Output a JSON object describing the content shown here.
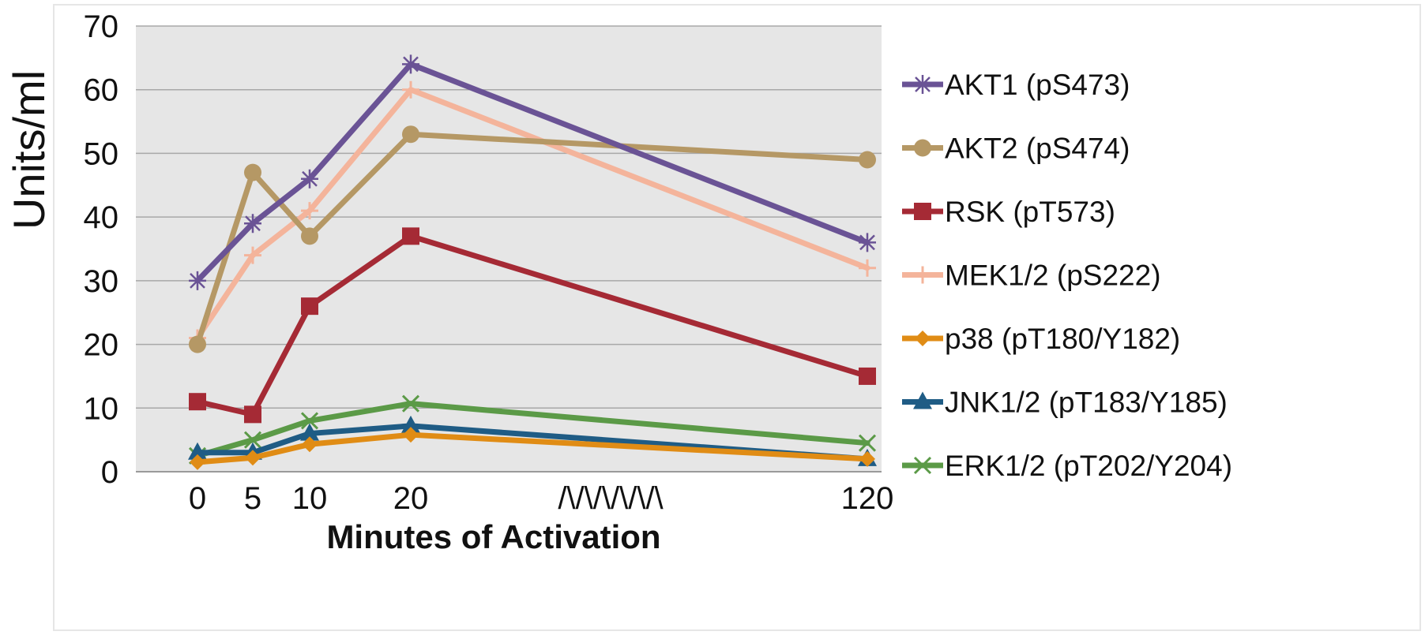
{
  "chart_data": {
    "type": "line",
    "title": "",
    "xlabel": "Minutes of Activation",
    "ylabel": "Units/ml",
    "ylim": [
      0,
      70
    ],
    "y_ticks": [
      "0",
      "10",
      "20",
      "30",
      "40",
      "50",
      "60",
      "70"
    ],
    "x": [
      0,
      5,
      10,
      20,
      120
    ],
    "x_tick_labels": [
      "0",
      "5",
      "10",
      "20",
      "120"
    ],
    "axis_break_label": "/\\/\\/\\/\\/\\/\\",
    "grid": true,
    "legend_position": "right",
    "series": [
      {
        "name": "AKT1 (pS473)",
        "color": "#6a5395",
        "marker": "asterisk",
        "values": [
          30,
          39,
          46,
          64,
          36
        ]
      },
      {
        "name": "AKT2 (pS474)",
        "color": "#b59865",
        "marker": "circle",
        "values": [
          20,
          47,
          37,
          53,
          49
        ]
      },
      {
        "name": "RSK (pT573)",
        "color": "#a52a35",
        "marker": "square",
        "values": [
          11,
          9,
          26,
          37,
          15
        ]
      },
      {
        "name": "MEK1/2 (pS222)",
        "color": "#f4b49b",
        "marker": "plus",
        "values": [
          21,
          34,
          41,
          60,
          32
        ]
      },
      {
        "name": "p38 (pT180/Y182)",
        "color": "#e08c15",
        "marker": "diamond",
        "values": [
          1.5,
          2.2,
          4.3,
          5.8,
          2
        ]
      },
      {
        "name": "JNK1/2 (pT183/Y185)",
        "color": "#1f5c85",
        "marker": "triangle",
        "values": [
          3,
          3,
          6,
          7.2,
          2
        ]
      },
      {
        "name": "ERK1/2 (pT202/Y204)",
        "color": "#5b9a47",
        "marker": "x",
        "values": [
          2.5,
          5,
          8,
          10.7,
          4.5
        ]
      }
    ]
  }
}
